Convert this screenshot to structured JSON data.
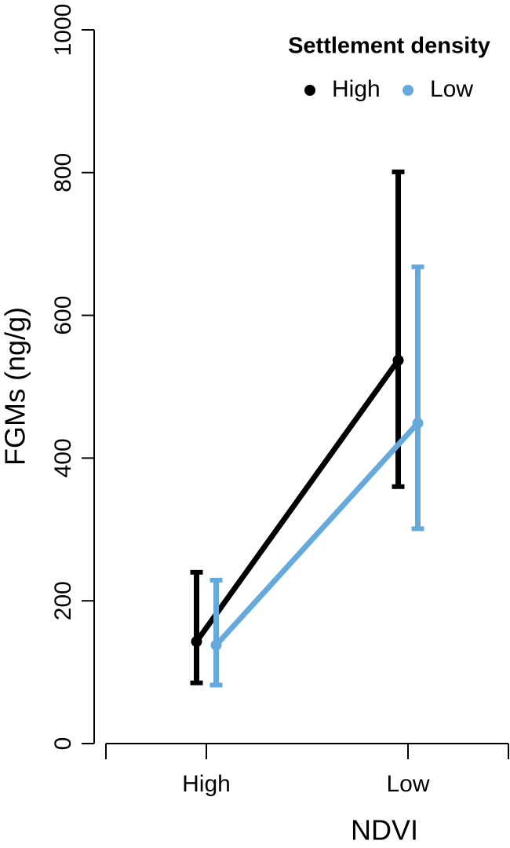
{
  "chart_data": {
    "type": "line",
    "x_label": "NDVI",
    "y_label": "FGMs (ng/g)",
    "categories": [
      "High",
      "Low"
    ],
    "series": [
      {
        "name": "High",
        "color": "#000000",
        "values": [
          143,
          537
        ],
        "lower": [
          85,
          360
        ],
        "upper": [
          240,
          801
        ]
      },
      {
        "name": "Low",
        "color": "#66aadd",
        "values": [
          138,
          449
        ],
        "lower": [
          82,
          301
        ],
        "upper": [
          229,
          668
        ]
      }
    ],
    "ylim": [
      0,
      1000
    ],
    "yticks": [
      0,
      200,
      400,
      600,
      800,
      1000
    ],
    "legend_title": "Settlement density",
    "legend": "top-right"
  }
}
